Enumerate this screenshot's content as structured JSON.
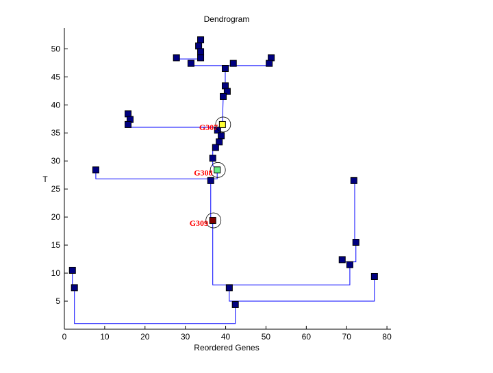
{
  "chart_data": {
    "type": "scatter",
    "title": "Dendrogram",
    "xlabel": "Reordered Genes",
    "ylabel": "T",
    "xlim": [
      0,
      81
    ],
    "ylim": [
      0,
      53.7
    ],
    "xticks": [
      0,
      10,
      20,
      30,
      40,
      50,
      60,
      70,
      80
    ],
    "yticks": [
      5,
      10,
      15,
      20,
      25,
      30,
      35,
      40,
      45,
      50
    ],
    "grid": false,
    "colors": {
      "node": "#000080",
      "line": "#0000ff",
      "label": "#ff0000"
    },
    "nodes": [
      [
        33.8,
        51.6
      ],
      [
        33.3,
        50.5
      ],
      [
        33.8,
        49.5
      ],
      [
        33.8,
        48.4
      ],
      [
        27.8,
        48.4
      ],
      [
        31.4,
        47.4
      ],
      [
        41.9,
        47.4
      ],
      [
        51.3,
        48.4
      ],
      [
        50.8,
        47.4
      ],
      [
        39.9,
        46.5
      ],
      [
        39.9,
        43.4
      ],
      [
        40.4,
        42.4
      ],
      [
        39.4,
        41.5
      ],
      [
        15.8,
        38.4
      ],
      [
        16.3,
        37.4
      ],
      [
        15.8,
        36.5
      ],
      [
        38.0,
        35.5
      ],
      [
        38.9,
        34.5
      ],
      [
        38.4,
        33.4
      ],
      [
        37.5,
        32.4
      ],
      [
        36.8,
        30.5
      ],
      [
        7.8,
        28.4
      ],
      [
        36.3,
        26.5
      ],
      [
        71.8,
        26.5
      ],
      [
        72.3,
        15.5
      ],
      [
        68.9,
        12.4
      ],
      [
        70.8,
        11.5
      ],
      [
        76.9,
        9.4
      ],
      [
        40.9,
        7.4
      ],
      [
        42.4,
        4.4
      ],
      [
        2.0,
        10.5
      ],
      [
        2.5,
        7.4
      ]
    ],
    "highlighted": [
      {
        "label": "G307",
        "x": 39.2,
        "y": 36.5,
        "color": "#ffff33"
      },
      {
        "label": "G308",
        "x": 37.9,
        "y": 28.4,
        "color": "#66ee88"
      },
      {
        "label": "G309",
        "x": 36.8,
        "y": 19.4,
        "color": "#800000"
      }
    ],
    "links": [
      [
        [
          2.0,
          10.5
        ],
        [
          2.0,
          7.8
        ],
        [
          2.5,
          7.8
        ],
        [
          2.5,
          1.0
        ],
        [
          42.4,
          1.0
        ],
        [
          42.4,
          4.4
        ]
      ],
      [
        [
          40.9,
          7.4
        ],
        [
          40.9,
          5.0
        ],
        [
          76.9,
          5.0
        ],
        [
          76.9,
          9.4
        ]
      ],
      [
        [
          36.8,
          19.4
        ],
        [
          36.8,
          7.9
        ],
        [
          70.8,
          7.9
        ],
        [
          70.8,
          11.5
        ]
      ],
      [
        [
          68.9,
          12.4
        ],
        [
          68.9,
          12.0
        ],
        [
          72.3,
          12.0
        ],
        [
          72.3,
          15.5
        ],
        [
          72.0,
          15.7
        ],
        [
          72.0,
          26.5
        ]
      ],
      [
        [
          36.3,
          26.5
        ],
        [
          36.3,
          19.8
        ],
        [
          36.8,
          19.8
        ]
      ],
      [
        [
          7.8,
          28.4
        ],
        [
          7.8,
          26.8
        ],
        [
          37.9,
          26.8
        ],
        [
          37.9,
          28.4
        ]
      ],
      [
        [
          36.3,
          26.5
        ],
        [
          36.3,
          26.8
        ]
      ],
      [
        [
          37.9,
          28.4
        ],
        [
          36.8,
          29.2
        ],
        [
          36.8,
          32.4
        ],
        [
          37.5,
          32.4
        ],
        [
          38.4,
          33.4
        ],
        [
          38.9,
          34.5
        ],
        [
          38.0,
          35.5
        ],
        [
          39.2,
          36.5
        ],
        [
          39.4,
          41.5
        ],
        [
          39.9,
          42.4
        ],
        [
          39.9,
          47.0
        ]
      ],
      [
        [
          15.8,
          36.5
        ],
        [
          15.8,
          36.0
        ],
        [
          39.2,
          36.0
        ]
      ],
      [
        [
          31.4,
          47.4
        ],
        [
          31.4,
          47.0
        ],
        [
          50.8,
          47.0
        ],
        [
          50.8,
          47.4
        ]
      ],
      [
        [
          51.3,
          48.4
        ],
        [
          50.8,
          47.4
        ]
      ],
      [
        [
          27.8,
          48.4
        ],
        [
          27.8,
          48.2
        ],
        [
          33.8,
          48.2
        ],
        [
          33.8,
          51.6
        ]
      ]
    ]
  }
}
